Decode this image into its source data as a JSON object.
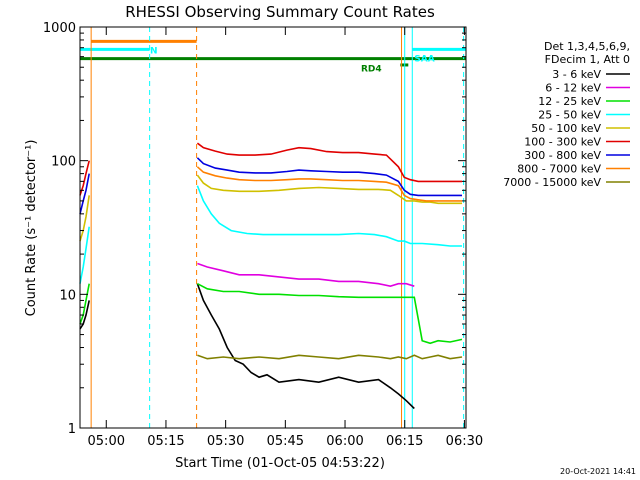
{
  "chart_data": {
    "type": "line",
    "title": "RHESSI Observing Summary Count Rates",
    "xlabel": "Start Time (01-Oct-05 04:53:22)",
    "ylabel": "Count Rate (s⁻¹ detector⁻¹)",
    "x_unit": "minutes after 04:53:22",
    "xlim": [
      0,
      97
    ],
    "ylim": [
      1,
      1000
    ],
    "yscale": "log",
    "x_ticks": [
      {
        "x": 6.6,
        "label": "05:00"
      },
      {
        "x": 21.6,
        "label": "05:15"
      },
      {
        "x": 36.6,
        "label": "05:30"
      },
      {
        "x": 51.6,
        "label": "05:45"
      },
      {
        "x": 66.6,
        "label": "06:00"
      },
      {
        "x": 81.6,
        "label": "06:15"
      },
      {
        "x": 96.6,
        "label": "06:30"
      }
    ],
    "y_ticks": [
      {
        "y": 1,
        "label": "1"
      },
      {
        "y": 10,
        "label": "10"
      },
      {
        "y": 100,
        "label": "100"
      },
      {
        "y": 1000,
        "label": "1000"
      }
    ],
    "legend_header": [
      "Det 1,3,4,5,6,9,",
      "FDecim 1, Att 0"
    ],
    "series": [
      {
        "name": "3 - 6 keV",
        "color": "#000000",
        "x": [
          0,
          0.8,
          1.5,
          2.3,
          29.5,
          31,
          33,
          35,
          37,
          39,
          41,
          43,
          45,
          47,
          50,
          55,
          60,
          65,
          70,
          75,
          78,
          80,
          82,
          84
        ],
        "y": [
          5.5,
          6,
          7,
          9,
          12,
          9,
          7,
          5.5,
          4,
          3.2,
          3,
          2.6,
          2.4,
          2.5,
          2.2,
          2.3,
          2.2,
          2.4,
          2.2,
          2.3,
          2.0,
          1.8,
          1.6,
          1.4
        ]
      },
      {
        "name": "6 - 12 keV",
        "color": "#e000e0",
        "x": [
          29.5,
          32,
          36,
          40,
          45,
          50,
          55,
          60,
          65,
          70,
          75,
          78,
          80,
          82,
          84
        ],
        "y": [
          17,
          16,
          15,
          14,
          14,
          13.5,
          13,
          13,
          12.5,
          12.5,
          12,
          11.5,
          12,
          12,
          11.5
        ]
      },
      {
        "name": "12 - 25 keV",
        "color": "#00e000",
        "x": [
          0,
          0.8,
          1.5,
          2.3,
          29.5,
          32,
          36,
          40,
          45,
          50,
          55,
          60,
          65,
          70,
          75,
          78,
          80,
          82,
          84,
          86,
          88,
          90,
          93,
          96
        ],
        "y": [
          6,
          7,
          9,
          12,
          12,
          11,
          10.5,
          10.5,
          10,
          10,
          9.8,
          9.8,
          9.6,
          9.5,
          9.5,
          9.5,
          9.5,
          9.5,
          9.5,
          4.5,
          4.3,
          4.5,
          4.4,
          4.6
        ]
      },
      {
        "name": "25 - 50 keV",
        "color": "#00ffff",
        "x": [
          0,
          0.8,
          1.5,
          2.3,
          29.5,
          31,
          33,
          35,
          38,
          42,
          46,
          50,
          55,
          60,
          65,
          70,
          74,
          77,
          80,
          81.5,
          83,
          86,
          90,
          93,
          96
        ],
        "y": [
          12,
          16,
          22,
          32,
          65,
          50,
          40,
          34,
          30,
          28.5,
          28,
          28,
          28,
          28,
          28,
          28.5,
          28,
          27,
          25,
          25,
          24,
          24,
          23.5,
          23,
          23
        ]
      },
      {
        "name": "50 - 100 keV",
        "color": "#d0c000",
        "x": [
          0,
          0.8,
          1.5,
          2.3,
          29.5,
          31,
          33,
          36,
          40,
          45,
          50,
          55,
          60,
          65,
          70,
          75,
          78,
          80,
          82,
          84,
          86,
          88,
          90,
          93,
          96
        ],
        "y": [
          25,
          30,
          38,
          55,
          78,
          68,
          62,
          60,
          59,
          59,
          60,
          62,
          63,
          62,
          61,
          61,
          60,
          55,
          50,
          50,
          49,
          49,
          48,
          48,
          48
        ]
      },
      {
        "name": "100 - 300 keV",
        "color": "#e00000",
        "x": [
          0,
          0.8,
          1.5,
          2.3,
          29.5,
          31,
          34,
          37,
          40,
          44,
          48,
          52,
          55,
          58,
          62,
          66,
          70,
          74,
          77,
          80,
          81.5,
          83,
          85,
          87,
          90,
          93,
          96
        ],
        "y": [
          55,
          65,
          80,
          100,
          135,
          125,
          118,
          112,
          110,
          110,
          112,
          120,
          125,
          123,
          117,
          115,
          115,
          112,
          110,
          90,
          75,
          72,
          70,
          70,
          70,
          70,
          70
        ]
      },
      {
        "name": "300 - 800 keV",
        "color": "#0000e0",
        "x": [
          0,
          0.8,
          1.5,
          2.3,
          29.5,
          31,
          34,
          37,
          40,
          44,
          48,
          52,
          55,
          58,
          62,
          66,
          70,
          74,
          77,
          80,
          81.5,
          83,
          85,
          87,
          90,
          93,
          96
        ],
        "y": [
          40,
          50,
          60,
          80,
          105,
          95,
          88,
          85,
          82,
          81,
          81,
          83,
          85,
          84,
          83,
          82,
          82,
          80,
          78,
          70,
          60,
          56,
          55,
          55,
          55,
          55,
          55
        ]
      },
      {
        "name": "800 - 7000 keV",
        "color": "#ff8000",
        "x": [
          29.5,
          31,
          34,
          37,
          40,
          44,
          48,
          52,
          55,
          58,
          62,
          66,
          70,
          74,
          77,
          80,
          81.5,
          83,
          85,
          87,
          90,
          93,
          96
        ],
        "y": [
          90,
          82,
          77,
          74,
          72,
          71,
          71,
          72,
          73,
          73,
          72,
          71,
          71,
          70,
          69,
          65,
          55,
          52,
          51,
          50,
          50,
          50,
          50
        ]
      },
      {
        "name": "7000 - 15000 keV",
        "color": "#808000",
        "x": [
          29.5,
          32,
          36,
          40,
          45,
          50,
          55,
          60,
          65,
          70,
          75,
          78,
          80,
          82,
          84,
          86,
          88,
          90,
          93,
          96
        ],
        "y": [
          3.5,
          3.3,
          3.4,
          3.3,
          3.4,
          3.3,
          3.5,
          3.4,
          3.3,
          3.5,
          3.4,
          3.3,
          3.4,
          3.3,
          3.5,
          3.3,
          3.4,
          3.5,
          3.3,
          3.4
        ]
      }
    ],
    "flag_bars": [
      {
        "label": "",
        "color": "#ff8000",
        "x0": 2.8,
        "x1": 29.3,
        "y": 780
      },
      {
        "label": "N",
        "color": "#00ffff",
        "x0": 0,
        "x1": 17.5,
        "y": 680
      },
      {
        "label": "RD4",
        "color": "#008000",
        "x0": 0,
        "x1": 97,
        "y": 580
      },
      {
        "label": "SAA",
        "color": "#00ffff",
        "x0": 83.5,
        "x1": 97,
        "y": 680
      },
      {
        "label": "",
        "color": "#008000",
        "x0": 80.5,
        "x1": 82.5,
        "y": 520
      }
    ],
    "vlines": [
      {
        "x": 2.8,
        "color": "#ff8000",
        "style": "solid"
      },
      {
        "x": 17.5,
        "color": "#00ffff",
        "style": "dashed"
      },
      {
        "x": 29.3,
        "color": "#ff8000",
        "style": "dashed"
      },
      {
        "x": 80.8,
        "color": "#ff8000",
        "style": "solid"
      },
      {
        "x": 81.6,
        "color": "#00ffff",
        "style": "solid"
      },
      {
        "x": 83.5,
        "color": "#00ffff",
        "style": "solid"
      },
      {
        "x": 96.4,
        "color": "#00ffff",
        "style": "dashed"
      }
    ],
    "timestamp": "20-Oct-2021 14:41"
  }
}
